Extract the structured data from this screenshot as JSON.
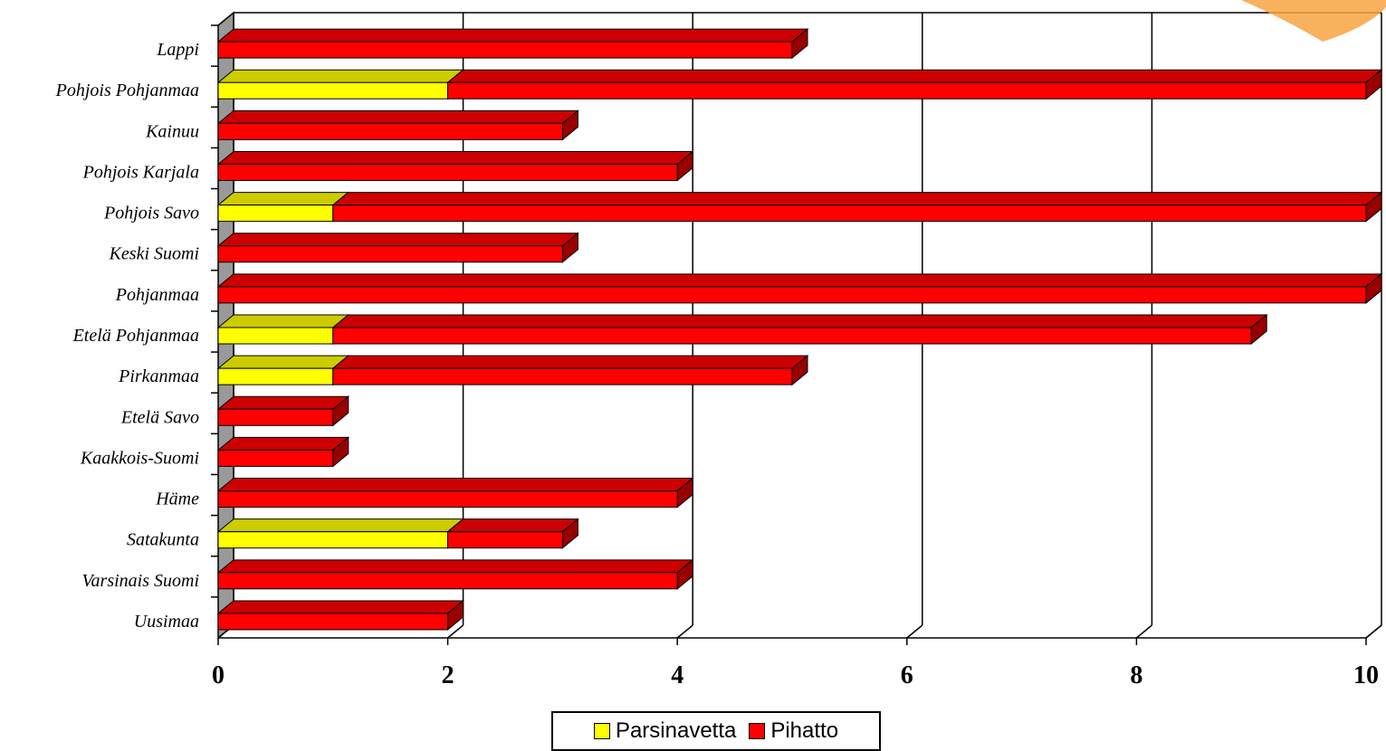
{
  "chart_data": {
    "type": "bar",
    "orientation": "horizontal",
    "stacked": true,
    "categories": [
      "Lappi",
      "Pohjois Pohjanmaa",
      "Kainuu",
      "Pohjois Karjala",
      "Pohjois Savo",
      "Keski Suomi",
      "Pohjanmaa",
      "Etelä Pohjanmaa",
      "Pirkanmaa",
      "Etelä Savo",
      "Kaakkois-Suomi",
      "Häme",
      "Satakunta",
      "Varsinais Suomi",
      "Uusimaa"
    ],
    "series": [
      {
        "name": "Parsinavetta",
        "color": "#ffff00",
        "values": [
          0,
          2,
          0,
          0,
          1,
          0,
          0,
          1,
          1,
          0,
          0,
          0,
          2,
          0,
          0
        ]
      },
      {
        "name": "Pihatto",
        "color": "#ff0000",
        "values": [
          5,
          8,
          3,
          4,
          9,
          3,
          10,
          8,
          4,
          1,
          1,
          4,
          1,
          4,
          2
        ]
      }
    ],
    "xticks": [
      "0",
      "2",
      "4",
      "6",
      "8",
      "10"
    ],
    "xlim": [
      0,
      10
    ],
    "grid": true,
    "legend_position": "bottom"
  }
}
